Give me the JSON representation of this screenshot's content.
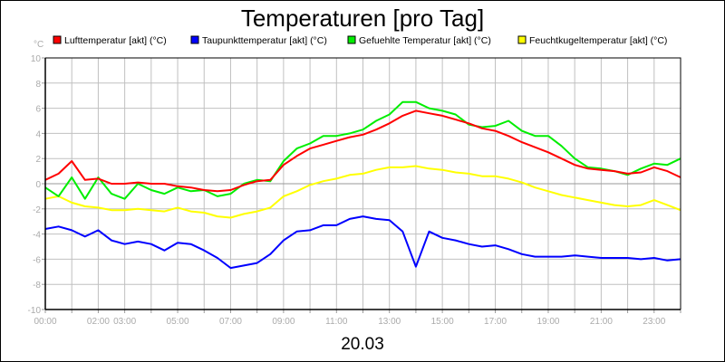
{
  "chart_data": {
    "type": "line",
    "title": "Temperaturen [pro Tag]",
    "ylabel": "°C",
    "xlabel": "20.03",
    "ylim": [
      -10,
      10
    ],
    "yticks": [
      -10,
      -8,
      -6,
      -4,
      -2,
      0,
      2,
      4,
      6,
      8,
      10
    ],
    "xlim": [
      "00:00",
      "24:00"
    ],
    "xtick_labels": [
      "00:00",
      "02:00",
      "03:00",
      "05:00",
      "07:00",
      "09:00",
      "11:00",
      "13:00",
      "15:00",
      "17:00",
      "19:00",
      "21:00",
      "23:00"
    ],
    "grid": true,
    "legend_position": "top",
    "x": [
      "00:00",
      "00:30",
      "01:00",
      "01:30",
      "02:00",
      "02:30",
      "03:00",
      "03:30",
      "04:00",
      "04:30",
      "05:00",
      "05:30",
      "06:00",
      "06:30",
      "07:00",
      "07:30",
      "08:00",
      "08:30",
      "09:00",
      "09:30",
      "10:00",
      "10:30",
      "11:00",
      "11:30",
      "12:00",
      "12:30",
      "13:00",
      "13:30",
      "14:00",
      "14:30",
      "15:00",
      "15:30",
      "16:00",
      "16:30",
      "17:00",
      "17:30",
      "18:00",
      "18:30",
      "19:00",
      "19:30",
      "20:00",
      "20:30",
      "21:00",
      "21:30",
      "22:00",
      "22:30",
      "23:00",
      "23:30",
      "24:00"
    ],
    "series": [
      {
        "name": "Lufttemperatur [akt] (°C)",
        "color": "#ff0000",
        "values": [
          0.3,
          0.8,
          1.8,
          0.3,
          0.4,
          0,
          0,
          0.1,
          0,
          0,
          -0.2,
          -0.3,
          -0.5,
          -0.6,
          -0.5,
          -0.1,
          0.2,
          0.3,
          1.5,
          2.2,
          2.8,
          3.1,
          3.4,
          3.7,
          3.9,
          4.3,
          4.8,
          5.4,
          5.8,
          5.6,
          5.4,
          5.1,
          4.8,
          4.4,
          4.2,
          3.8,
          3.3,
          2.9,
          2.5,
          2.0,
          1.5,
          1.2,
          1.1,
          1.0,
          0.8,
          0.9,
          1.3,
          1.0,
          0.5
        ]
      },
      {
        "name": "Taupunkttemperatur [akt] (°C)",
        "color": "#0000ff",
        "values": [
          -3.6,
          -3.4,
          -3.7,
          -4.2,
          -3.7,
          -4.5,
          -4.8,
          -4.6,
          -4.8,
          -5.3,
          -4.7,
          -4.8,
          -5.3,
          -5.9,
          -6.7,
          -6.5,
          -6.3,
          -5.6,
          -4.5,
          -3.8,
          -3.7,
          -3.3,
          -3.3,
          -2.8,
          -2.6,
          -2.8,
          -2.9,
          -3.8,
          -6.6,
          -3.8,
          -4.3,
          -4.5,
          -4.8,
          -5.0,
          -4.9,
          -5.2,
          -5.6,
          -5.8,
          -5.8,
          -5.8,
          -5.7,
          -5.8,
          -5.9,
          -5.9,
          -5.9,
          -6.0,
          -5.9,
          -6.1,
          -6.0
        ]
      },
      {
        "name": "Gefuehlte Temperatur [akt] (°C)",
        "color": "#00ee00",
        "values": [
          -0.3,
          -1.0,
          0.5,
          -1.2,
          0.5,
          -0.8,
          -1.2,
          0,
          -0.5,
          -0.8,
          -0.3,
          -0.6,
          -0.5,
          -1.0,
          -0.8,
          0,
          0.3,
          0.2,
          1.8,
          2.8,
          3.2,
          3.8,
          3.8,
          4.0,
          4.3,
          5.0,
          5.5,
          6.5,
          6.5,
          6.0,
          5.8,
          5.5,
          4.7,
          4.5,
          4.6,
          5.0,
          4.2,
          3.8,
          3.8,
          3.0,
          2.0,
          1.3,
          1.2,
          1.0,
          0.7,
          1.2,
          1.6,
          1.5,
          2.0
        ]
      },
      {
        "name": "Feuchtkugeltemperatur [akt] (°C)",
        "color": "#ffff00",
        "values": [
          -1.2,
          -1.0,
          -1.5,
          -1.8,
          -1.9,
          -2.1,
          -2.1,
          -2.0,
          -2.1,
          -2.2,
          -1.9,
          -2.2,
          -2.3,
          -2.6,
          -2.7,
          -2.4,
          -2.2,
          -1.9,
          -1.0,
          -0.6,
          -0.1,
          0.2,
          0.4,
          0.7,
          0.8,
          1.1,
          1.3,
          1.3,
          1.4,
          1.2,
          1.1,
          0.9,
          0.8,
          0.6,
          0.6,
          0.4,
          0.1,
          -0.3,
          -0.6,
          -0.9,
          -1.1,
          -1.3,
          -1.5,
          -1.7,
          -1.8,
          -1.7,
          -1.3,
          -1.7,
          -2.1
        ]
      }
    ]
  }
}
